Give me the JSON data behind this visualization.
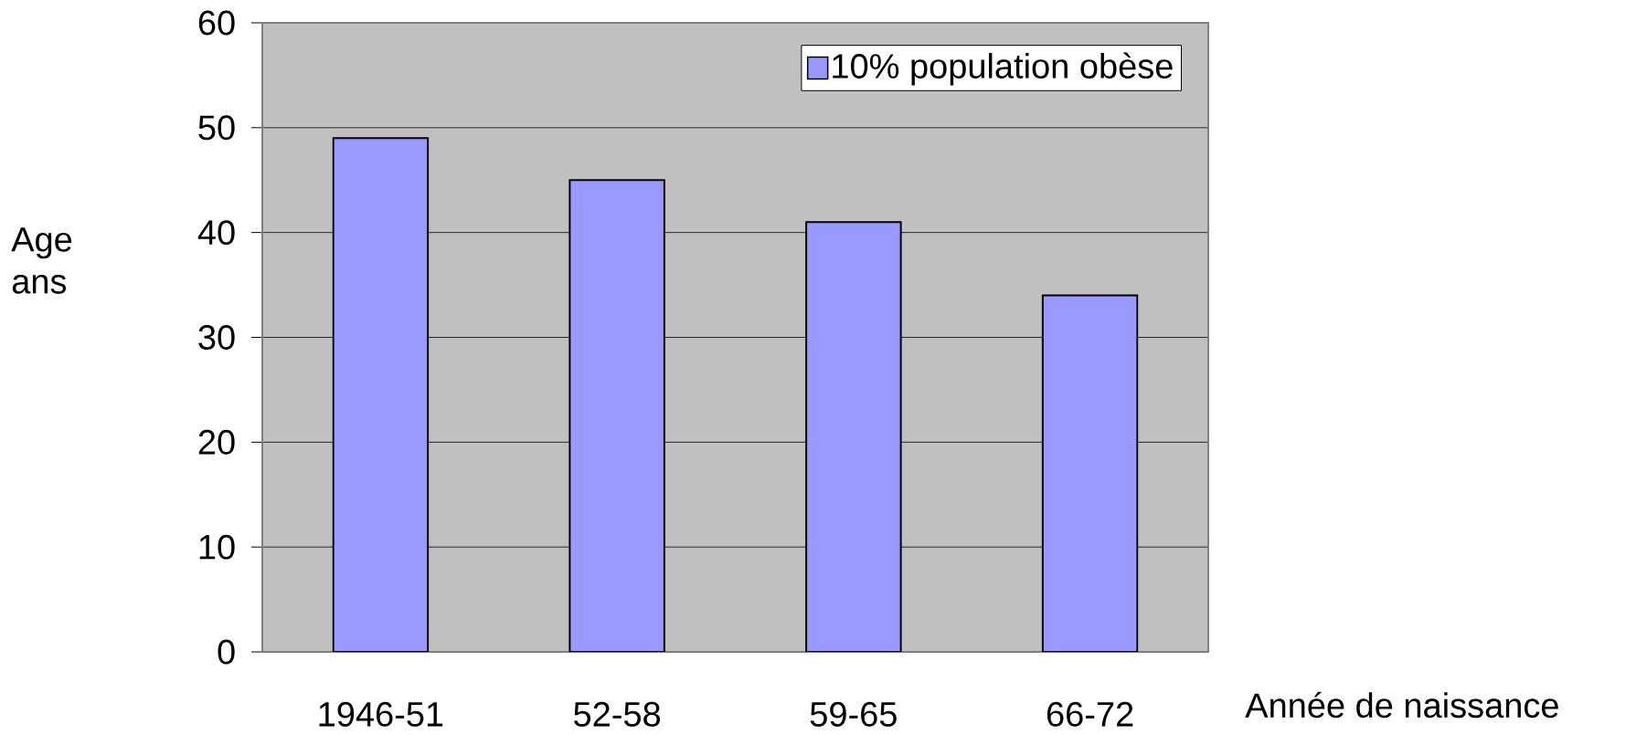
{
  "chart_data": {
    "type": "bar",
    "categories": [
      "1946-51",
      "52-58",
      "59-65",
      "66-72"
    ],
    "series": [
      {
        "name": "10% population obèse",
        "color": "#9999ff",
        "values": [
          49,
          45,
          41,
          34
        ]
      }
    ],
    "xlabel": "Année de naissance",
    "ylabel": "Age ans",
    "ylim": [
      0,
      60
    ],
    "yticks": [
      0,
      10,
      20,
      30,
      40,
      50,
      60
    ],
    "grid": "y",
    "legend": "top right"
  }
}
